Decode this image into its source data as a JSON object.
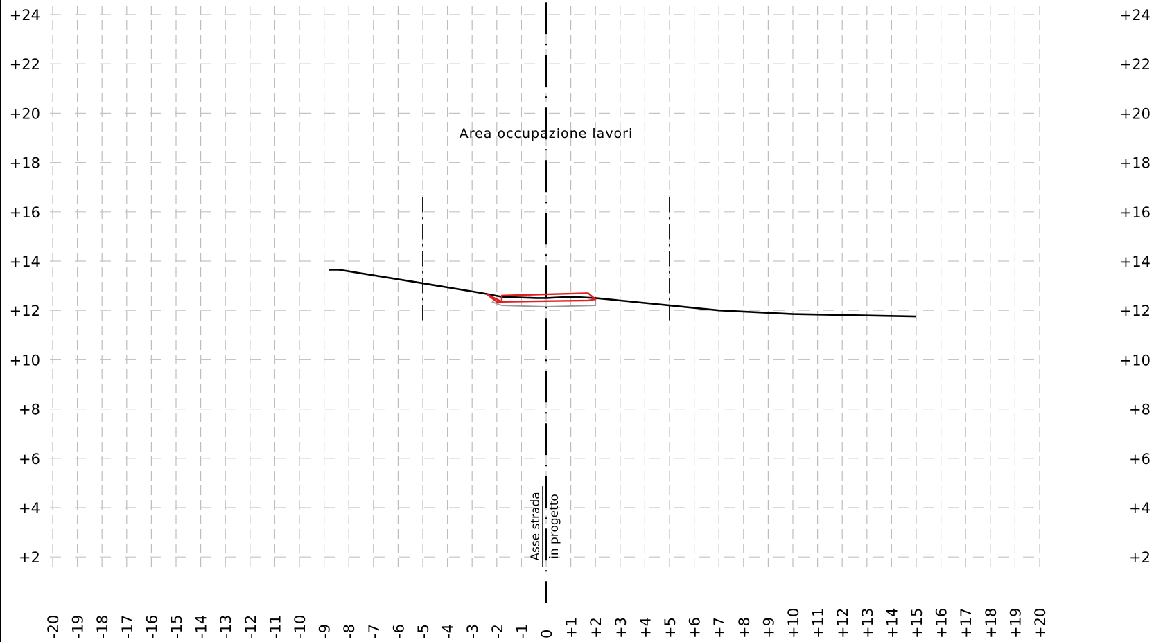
{
  "chart_data": {
    "type": "line",
    "xlim": [
      -20,
      20
    ],
    "ylim": [
      2,
      24
    ],
    "x_ticks": [
      "-20",
      "-19",
      "-18",
      "-17",
      "-16",
      "-15",
      "-14",
      "-13",
      "-12",
      "-11",
      "-10",
      "-9",
      "-8",
      "-7",
      "-6",
      "-5",
      "-4",
      "-3",
      "-2",
      "-1",
      "0",
      "+1",
      "+2",
      "+3",
      "+4",
      "+5",
      "+6",
      "+7",
      "+8",
      "+9",
      "+10",
      "+11",
      "+12",
      "+13",
      "+14",
      "+15",
      "+16",
      "+17",
      "+18",
      "+19",
      "+20"
    ],
    "y_ticks": [
      "+2",
      "+4",
      "+6",
      "+8",
      "+10",
      "+12",
      "+14",
      "+16",
      "+18",
      "+20",
      "+22",
      "+24"
    ],
    "annotation_area": "Area  occupazione  lavori",
    "axis_label_line1": "Asse  strada",
    "axis_label_line2": "in  progetto",
    "terrain": {
      "x": [
        -8.8,
        -8.4,
        -5.0,
        -2.6,
        -1.8,
        -0.4,
        0.0,
        1.0,
        2.0,
        5.0,
        7.0,
        10.0,
        15.0
      ],
      "y": [
        13.65,
        13.65,
        13.1,
        12.7,
        12.55,
        12.5,
        12.5,
        12.55,
        12.5,
        12.2,
        12.0,
        11.85,
        11.75
      ]
    },
    "project_section": {
      "color": "#e02020",
      "outline_x": [
        -2.4,
        -2.0,
        -1.8,
        -1.8,
        1.7,
        2.0,
        1.7,
        -1.8
      ],
      "outline_y": [
        12.65,
        12.35,
        12.35,
        12.6,
        12.7,
        12.45,
        12.4,
        12.35
      ]
    },
    "sub_section": {
      "color": "#999999",
      "x": [
        -2.2,
        -1.8,
        0.0,
        2.0,
        2.0
      ],
      "y": [
        12.35,
        12.2,
        12.15,
        12.2,
        12.45
      ]
    },
    "work_area_limits_x": [
      -5,
      5
    ],
    "work_area_limits_y": [
      11.5,
      16.6
    ],
    "axis_line_x": 0,
    "axis_line_y": [
      1.5,
      24.5
    ]
  }
}
